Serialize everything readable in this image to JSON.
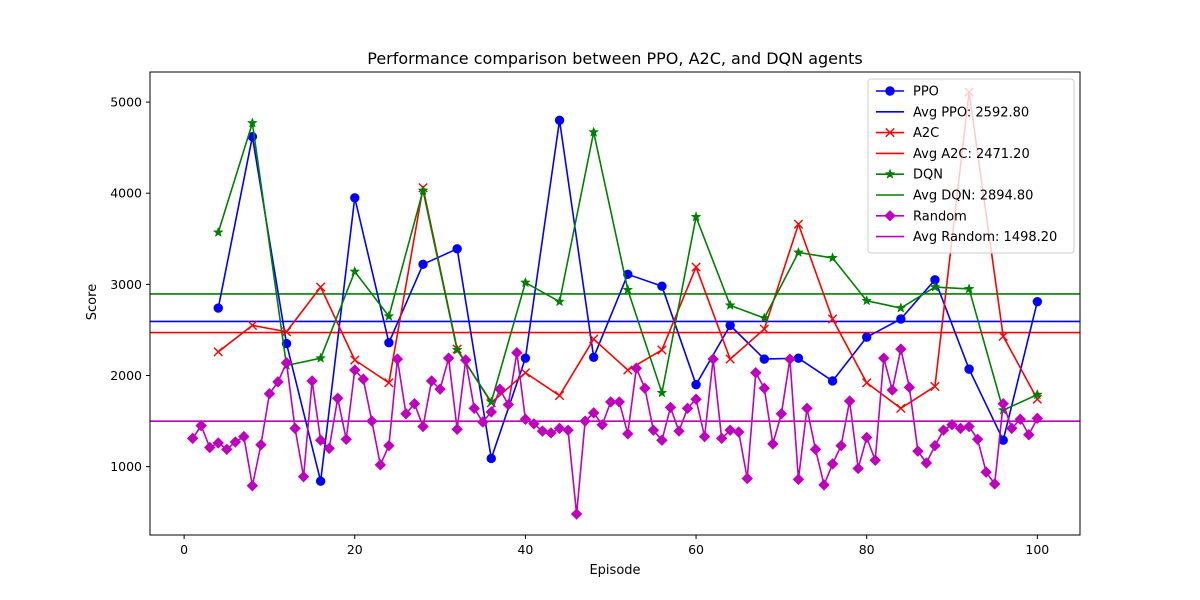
{
  "chart_data": {
    "type": "line",
    "title": "Performance comparison between PPO, A2C, and DQN agents",
    "xlabel": "Episode",
    "ylabel": "Score",
    "xlim": [
      -4,
      105
    ],
    "ylim": [
      250,
      5330
    ],
    "xticks": [
      0,
      20,
      40,
      60,
      80,
      100
    ],
    "yticks": [
      1000,
      2000,
      3000,
      4000,
      5000
    ],
    "grid": false,
    "legend_position": "upper right",
    "series": [
      {
        "name": "PPO",
        "color": "#0000ff",
        "marker": "circle",
        "x": [
          4,
          8,
          12,
          16,
          20,
          24,
          28,
          32,
          36,
          40,
          44,
          48,
          52,
          56,
          60,
          64,
          68,
          72,
          76,
          80,
          84,
          88,
          92,
          96,
          100
        ],
        "y": [
          2740,
          4620,
          2350,
          840,
          3950,
          2360,
          3220,
          3390,
          1090,
          2190,
          4800,
          2200,
          3110,
          2980,
          1900,
          2550,
          2180,
          2190,
          1940,
          2420,
          2620,
          3050,
          2070,
          1290,
          2810
        ]
      },
      {
        "name": "A2C",
        "color": "#ff0000",
        "marker": "x",
        "x": [
          4,
          8,
          12,
          16,
          20,
          24,
          28,
          32,
          36,
          40,
          44,
          48,
          52,
          56,
          60,
          64,
          68,
          72,
          76,
          80,
          84,
          88,
          92,
          96,
          100
        ],
        "y": [
          2260,
          2550,
          2480,
          2970,
          2170,
          1920,
          4060,
          2290,
          1700,
          2030,
          1780,
          2400,
          2060,
          2280,
          3190,
          2180,
          2510,
          3660,
          2620,
          1920,
          1640,
          1880,
          5110,
          2430,
          1740
        ]
      },
      {
        "name": "DQN",
        "color": "#008000",
        "marker": "star",
        "x": [
          4,
          8,
          12,
          16,
          20,
          24,
          28,
          32,
          36,
          40,
          44,
          48,
          52,
          56,
          60,
          64,
          68,
          72,
          76,
          80,
          84,
          88,
          92,
          96,
          100
        ],
        "y": [
          3570,
          4770,
          2110,
          2190,
          3140,
          2650,
          4030,
          2280,
          1710,
          3020,
          2810,
          4670,
          2940,
          1810,
          3740,
          2770,
          2630,
          3350,
          3290,
          2820,
          2740,
          2970,
          2950,
          1620,
          1790
        ]
      },
      {
        "name": "Random",
        "color": "#bf00bf",
        "marker": "diamond",
        "x": [
          1,
          2,
          3,
          4,
          5,
          6,
          7,
          8,
          9,
          10,
          11,
          12,
          13,
          14,
          15,
          16,
          17,
          18,
          19,
          20,
          21,
          22,
          23,
          24,
          25,
          26,
          27,
          28,
          29,
          30,
          31,
          32,
          33,
          34,
          35,
          36,
          37,
          38,
          39,
          40,
          41,
          42,
          43,
          44,
          45,
          46,
          47,
          48,
          49,
          50,
          51,
          52,
          53,
          54,
          55,
          56,
          57,
          58,
          59,
          60,
          61,
          62,
          63,
          64,
          65,
          66,
          67,
          68,
          69,
          70,
          71,
          72,
          73,
          74,
          75,
          76,
          77,
          78,
          79,
          80,
          81,
          82,
          83,
          84,
          85,
          86,
          87,
          88,
          89,
          90,
          91,
          92,
          93,
          94,
          95,
          96,
          97,
          98,
          99,
          100
        ],
        "y": [
          1310,
          1450,
          1210,
          1260,
          1190,
          1270,
          1330,
          790,
          1240,
          1800,
          1930,
          2140,
          1420,
          890,
          1940,
          1290,
          1200,
          1750,
          1300,
          2060,
          1960,
          1500,
          1020,
          1230,
          2180,
          1580,
          1690,
          1440,
          1940,
          1850,
          2190,
          1410,
          2170,
          1640,
          1490,
          1600,
          1850,
          1680,
          2250,
          1520,
          1470,
          1390,
          1370,
          1420,
          1400,
          480,
          1500,
          1590,
          1460,
          1710,
          1710,
          1360,
          2080,
          1860,
          1400,
          1290,
          1650,
          1390,
          1640,
          1740,
          1330,
          2180,
          1310,
          1400,
          1380,
          870,
          2030,
          1860,
          1250,
          1580,
          2180,
          860,
          1640,
          1190,
          800,
          1030,
          1230,
          1720,
          980,
          1320,
          1070,
          2190,
          1840,
          2290,
          1870,
          1170,
          1040,
          1230,
          1400,
          1460,
          1420,
          1440,
          1300,
          940,
          810,
          1690,
          1420,
          1520,
          1350,
          1530
        ]
      }
    ],
    "averages": [
      {
        "name": "Avg PPO: 2592.80",
        "value": 2592.8,
        "color": "#0000ff"
      },
      {
        "name": "Avg A2C: 2471.20",
        "value": 2471.2,
        "color": "#ff0000"
      },
      {
        "name": "Avg DQN: 2894.80",
        "value": 2894.8,
        "color": "#008000"
      },
      {
        "name": "Avg Random: 1498.20",
        "value": 1498.2,
        "color": "#bf00bf"
      }
    ],
    "legend": [
      {
        "label": "PPO",
        "color": "#0000ff",
        "marker": "circle"
      },
      {
        "label": "Avg PPO: 2592.80",
        "color": "#0000ff",
        "marker": "none"
      },
      {
        "label": "A2C",
        "color": "#ff0000",
        "marker": "x"
      },
      {
        "label": "Avg A2C: 2471.20",
        "color": "#ff0000",
        "marker": "none"
      },
      {
        "label": "DQN",
        "color": "#008000",
        "marker": "star"
      },
      {
        "label": "Avg DQN: 2894.80",
        "color": "#008000",
        "marker": "none"
      },
      {
        "label": "Random",
        "color": "#bf00bf",
        "marker": "diamond"
      },
      {
        "label": "Avg Random: 1498.20",
        "color": "#bf00bf",
        "marker": "none"
      }
    ]
  }
}
